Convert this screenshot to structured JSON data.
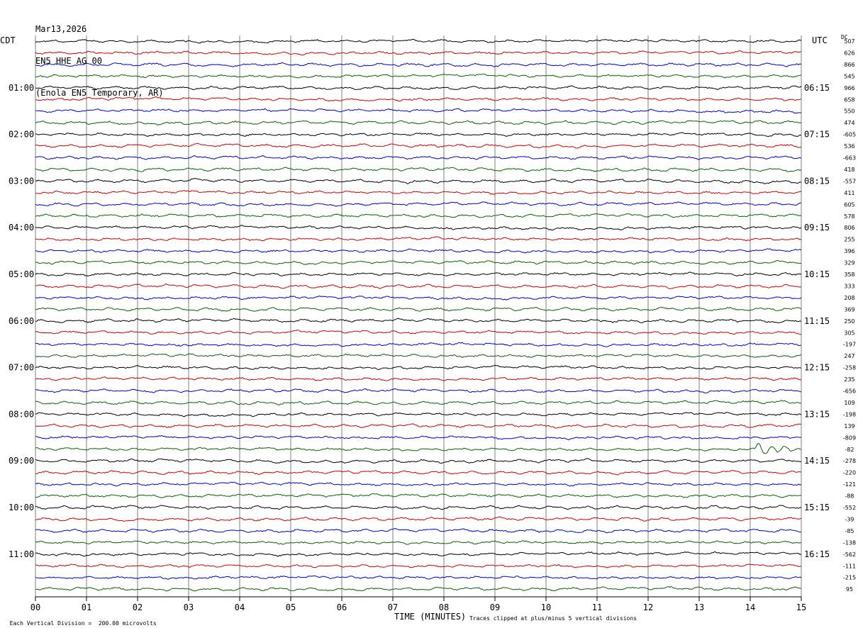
{
  "header": {
    "date": "Mar13,2026",
    "station": "EN5 HHE AG 00",
    "location": "(Enola EN5 Temporary, AR)"
  },
  "left_zone_label": "CDT",
  "right_zone_label": "UTC",
  "dc_label": "DC",
  "footer": {
    "scale_note": "Each Vertical Division =  200.00 microvolts",
    "xlabel": "TIME (MINUTES)",
    "clip_note": "Traces clipped at plus/minus 5 vertical divisions"
  },
  "colors": {
    "trace_cycle": [
      "#000000",
      "#cc0000",
      "#0000cc",
      "#006600"
    ],
    "grid": "#808080"
  },
  "chart_data": {
    "type": "line",
    "title": "EN5 HHE AG 00",
    "xlabel": "TIME (MINUTES)",
    "xlim": [
      0,
      15
    ],
    "x_ticks": [
      "00",
      "01",
      "02",
      "03",
      "04",
      "05",
      "06",
      "07",
      "08",
      "09",
      "10",
      "11",
      "12",
      "13",
      "14",
      "15"
    ],
    "trace_minutes": 15,
    "trace_count": 48,
    "left_time_labels": [
      "01:00",
      "02:00",
      "03:00",
      "04:00",
      "05:00",
      "06:00",
      "07:00",
      "08:00",
      "09:00",
      "10:00",
      "11:00"
    ],
    "right_time_labels": [
      "06:15",
      "07:15",
      "08:15",
      "09:15",
      "10:15",
      "11:15",
      "12:15",
      "13:15",
      "14:15",
      "15:15",
      "16:15"
    ],
    "dc_offsets": [
      "507",
      "626",
      "866",
      "545",
      "966",
      "658",
      "550",
      "474",
      "-605",
      "536",
      "-663",
      "418",
      "-557",
      "411",
      "605",
      "578",
      "806",
      "255",
      "396",
      "329",
      "358",
      "333",
      "208",
      "369",
      "250",
      "305",
      "-197",
      "247",
      "-258",
      "235",
      "-656",
      "109",
      "-198",
      "139",
      "-809",
      "-82",
      "-278",
      "-220",
      "-121",
      "-88",
      "-552",
      "-39",
      "-85",
      "-138",
      "-562",
      "-111",
      "-215",
      "95"
    ],
    "events": [
      {
        "trace": 35,
        "minute": 14.1,
        "description": "spike"
      }
    ]
  }
}
